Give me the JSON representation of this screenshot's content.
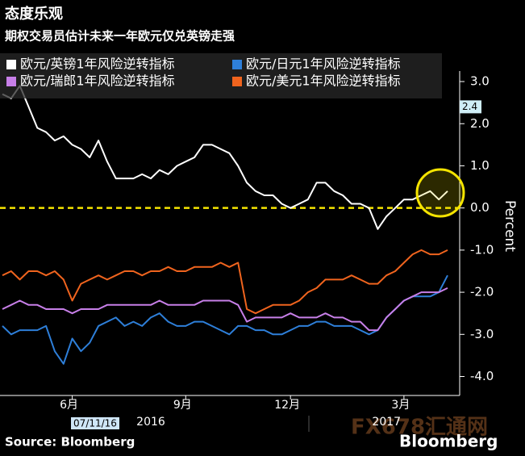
{
  "chart_data": {
    "type": "line",
    "title": "态度乐观",
    "subtitle": "期权交易员估计未来一年欧元仅兑英镑走强",
    "y_label": "Percent",
    "source": "Source: Bloomberg",
    "brand": "Bloomberg",
    "watermark": "FX678汇通网",
    "cursor_label": "07/11/16",
    "cursor_value": 2.4,
    "reference_line": {
      "value": 0,
      "color": "#f5e400"
    },
    "categories": [
      null,
      null,
      null,
      null,
      null,
      null,
      null,
      null,
      "6月",
      null,
      null,
      null,
      null,
      null,
      null,
      null,
      null,
      null,
      null,
      null,
      null,
      "9月",
      null,
      null,
      null,
      null,
      null,
      null,
      null,
      null,
      null,
      null,
      null,
      "12月",
      null,
      null,
      null,
      null,
      null,
      null,
      null,
      null,
      null,
      null,
      null,
      null,
      "3月",
      null,
      null,
      null,
      null,
      null
    ],
    "category_years": [
      null,
      null,
      null,
      null,
      null,
      null,
      null,
      null,
      null,
      null,
      null,
      null,
      null,
      null,
      null,
      null,
      null,
      "2016",
      null,
      null,
      null,
      null,
      null,
      null,
      null,
      null,
      null,
      null,
      null,
      null,
      null,
      null,
      null,
      null,
      null,
      null,
      null,
      null,
      null,
      null,
      null,
      null,
      null,
      null,
      "2017",
      null,
      null,
      null,
      null,
      null,
      null,
      null
    ],
    "series": [
      {
        "name": "欧元/英镑1年风险逆转指标",
        "color": "#ffffff",
        "values": [
          2.7,
          2.6,
          2.9,
          2.4,
          1.9,
          1.8,
          1.6,
          1.7,
          1.5,
          1.4,
          1.2,
          1.6,
          1.1,
          0.7,
          0.7,
          0.7,
          0.8,
          0.7,
          0.9,
          0.8,
          1.0,
          1.1,
          1.2,
          1.5,
          1.5,
          1.4,
          1.3,
          1.0,
          0.6,
          0.4,
          0.3,
          0.3,
          0.1,
          0.0,
          0.1,
          0.2,
          0.6,
          0.6,
          0.4,
          0.3,
          0.1,
          0.1,
          0.0,
          -0.5,
          -0.2,
          0.0,
          0.2,
          0.2,
          0.3,
          0.4,
          0.2,
          0.4
        ]
      },
      {
        "name": "欧元/日元1年风险逆转指标",
        "color": "#2e7fd9",
        "values": [
          -2.8,
          -3.0,
          -2.9,
          -2.9,
          -2.9,
          -2.8,
          -3.4,
          -3.7,
          -3.1,
          -3.4,
          -3.2,
          -2.8,
          -2.7,
          -2.6,
          -2.8,
          -2.7,
          -2.8,
          -2.6,
          -2.5,
          -2.7,
          -2.8,
          -2.8,
          -2.7,
          -2.7,
          -2.8,
          -2.9,
          -3.0,
          -2.8,
          -2.8,
          -2.9,
          -2.9,
          -3.0,
          -3.0,
          -2.9,
          -2.8,
          -2.8,
          -2.7,
          -2.7,
          -2.8,
          -2.8,
          -2.8,
          -2.9,
          -3.0,
          -2.9,
          -2.6,
          -2.4,
          -2.2,
          -2.1,
          -2.1,
          -2.1,
          -2.0,
          -1.6
        ]
      },
      {
        "name": "欧元/瑞郎1年风险逆转指标",
        "color": "#c77fe8",
        "values": [
          -2.4,
          -2.3,
          -2.2,
          -2.3,
          -2.3,
          -2.4,
          -2.4,
          -2.4,
          -2.5,
          -2.4,
          -2.4,
          -2.4,
          -2.3,
          -2.3,
          -2.3,
          -2.3,
          -2.3,
          -2.3,
          -2.2,
          -2.3,
          -2.3,
          -2.3,
          -2.3,
          -2.2,
          -2.2,
          -2.2,
          -2.2,
          -2.3,
          -2.7,
          -2.6,
          -2.6,
          -2.6,
          -2.6,
          -2.5,
          -2.6,
          -2.6,
          -2.6,
          -2.5,
          -2.6,
          -2.6,
          -2.7,
          -2.7,
          -2.9,
          -2.9,
          -2.6,
          -2.4,
          -2.2,
          -2.1,
          -2.0,
          -2.0,
          -2.0,
          -1.9
        ]
      },
      {
        "name": "欧元/美元1年风险逆转指标",
        "color": "#f0641e",
        "values": [
          -1.6,
          -1.5,
          -1.7,
          -1.5,
          -1.5,
          -1.6,
          -1.5,
          -1.7,
          -2.2,
          -1.8,
          -1.7,
          -1.6,
          -1.7,
          -1.6,
          -1.5,
          -1.5,
          -1.6,
          -1.5,
          -1.5,
          -1.4,
          -1.5,
          -1.5,
          -1.4,
          -1.4,
          -1.4,
          -1.3,
          -1.4,
          -1.3,
          -2.4,
          -2.5,
          -2.4,
          -2.3,
          -2.3,
          -2.3,
          -2.2,
          -2.0,
          -1.9,
          -1.7,
          -1.7,
          -1.7,
          -1.6,
          -1.7,
          -1.8,
          -1.8,
          -1.6,
          -1.5,
          -1.3,
          -1.1,
          -1.0,
          -1.1,
          -1.1,
          -1.0
        ]
      }
    ],
    "ylim": [
      -4.45,
      3.25
    ],
    "yticks": [
      {
        "value": 3,
        "label": "3.0"
      },
      {
        "value": 2,
        "label": "2.0"
      },
      {
        "value": 1,
        "label": "1.0"
      },
      {
        "value": 0,
        "label": "0.0"
      },
      {
        "value": -1,
        "label": "-1.0"
      },
      {
        "value": -2,
        "label": "-2.0"
      },
      {
        "value": -3,
        "label": "-3.0"
      },
      {
        "value": -4,
        "label": "-4.0"
      }
    ]
  }
}
